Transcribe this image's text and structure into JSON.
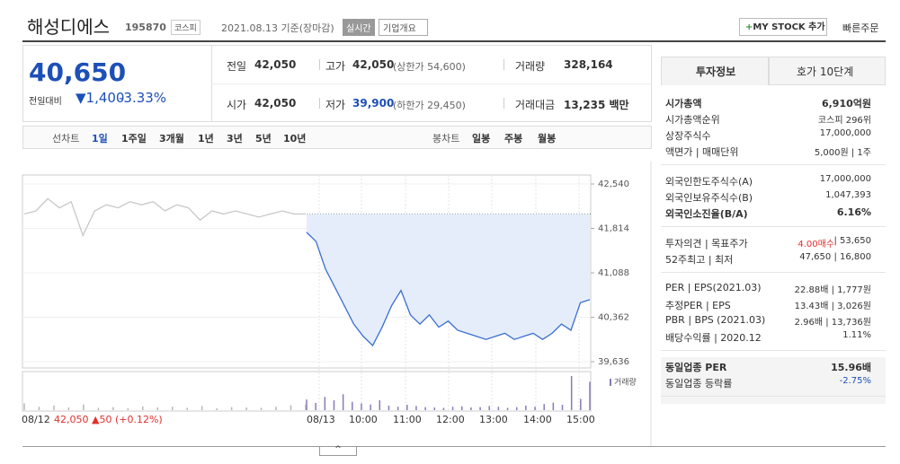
{
  "header": {
    "title": "해성디에스",
    "code": "195870",
    "market": "코스피",
    "date": "2021.08.13 기준(장마감)",
    "realtime": "실시간",
    "overview": "기업개요",
    "mystock": "MY STOCK 추가",
    "quick_order": "빠른주문"
  },
  "quote": {
    "price": "40,650",
    "change_label": "전일대비",
    "change": "▼1,400",
    "change_rate": "-3.33%"
  },
  "table": {
    "rows": [
      [
        {
          "label": "전일",
          "value": "42,050"
        },
        {
          "label": "고가",
          "value": "42,050",
          "note": "(상한가 54,600)"
        },
        {
          "label": "거래량",
          "value": "328,164"
        }
      ],
      [
        {
          "label": "시가",
          "value": "42,050"
        },
        {
          "label": "저가",
          "value": "39,900",
          "note": "(하한가 29,450)"
        },
        {
          "label": "거래대금",
          "value": "13,235 백만"
        }
      ]
    ]
  },
  "tabs": {
    "line_chart": "선차트",
    "periods": [
      "1일",
      "1주일",
      "3개월",
      "1년",
      "3년",
      "5년",
      "10년"
    ],
    "candle_chart": "봉차트",
    "candles": [
      "일봉",
      "주봉",
      "월봉"
    ]
  },
  "chart_data": {
    "type": "line",
    "ylim": [
      39636,
      42540
    ],
    "yticks": [
      {
        "value": 42540,
        "label": "42,540"
      },
      {
        "value": 41814,
        "label": "41,814"
      },
      {
        "value": 41088,
        "label": "41,088"
      },
      {
        "value": 40362,
        "label": "40,362"
      },
      {
        "value": 39636,
        "label": "39,636"
      }
    ],
    "reference": 42050,
    "x_labels": [
      "08/12",
      "08/13",
      "10:00",
      "11:00",
      "12:00",
      "13:00",
      "14:00",
      "15:00"
    ],
    "prev_summary": "42,050 ▲50 (+0.12%)",
    "volume_label": "거래량",
    "series": [
      {
        "name": "08/12",
        "color": "#c8c8c8",
        "values": [
          42050,
          42100,
          42300,
          42150,
          42250,
          41700,
          42100,
          42200,
          42150,
          42250,
          42200,
          42250,
          42100,
          42200,
          42150,
          41950,
          42100,
          42050,
          42100,
          42050,
          42000,
          42050,
          42100,
          42050,
          42050
        ]
      },
      {
        "name": "08/13",
        "color": "#3b6fd0",
        "values": [
          41750,
          41600,
          41150,
          40850,
          40550,
          40250,
          40050,
          39900,
          40200,
          40550,
          40800,
          40400,
          40250,
          40400,
          40200,
          40300,
          40150,
          40100,
          40050,
          40000,
          40050,
          40100,
          40000,
          40050,
          40100,
          40000,
          40100,
          40250,
          40150,
          40600,
          40650
        ]
      }
    ],
    "volume": [
      {
        "color": "#b8b8b8",
        "values": [
          1800,
          900,
          1200,
          700,
          1500,
          600,
          800,
          500,
          1000,
          700,
          900,
          600,
          1100,
          500,
          800,
          700,
          600,
          900,
          1300,
          1500
        ]
      },
      {
        "color": "#8a7ab8",
        "values": [
          2800,
          1900,
          3500,
          2600,
          4200,
          2200,
          1800,
          1500,
          2600,
          1200,
          900,
          1400,
          1100,
          800,
          700,
          600,
          900,
          1000,
          700,
          800,
          1100,
          900,
          600,
          800,
          1200,
          900,
          1600,
          2000,
          1400,
          9000,
          3000,
          7500
        ]
      }
    ]
  },
  "side": {
    "tabs": [
      "투자정보",
      "호가 10단계"
    ],
    "groups": [
      [
        {
          "label": "시가총액",
          "value": "6,910억원"
        },
        {
          "label": "시가총액순위",
          "value": "코스피 296위"
        },
        {
          "label": "상장주식수",
          "value": "17,000,000"
        },
        {
          "label": "액면가 | 매매단위",
          "value": "5,000원 | 1주"
        }
      ],
      [
        {
          "label": "외국인한도주식수(A)",
          "value": "17,000,000"
        },
        {
          "label": "외국인보유주식수(B)",
          "value": "1,047,393"
        },
        {
          "label": "외국인소진율(B/A)",
          "value": "6.16%"
        }
      ],
      [
        {
          "label": "투자의견 | 목표주가",
          "value": "4.00매수",
          "value2": "| 53,650"
        },
        {
          "label": "52주최고 | 최저",
          "value": "47,650 | 16,800"
        }
      ],
      [
        {
          "label": "PER | EPS(2021.03)",
          "value": "22.88배 | 1,777원"
        },
        {
          "label": "추정PER | EPS",
          "value": "13.43배 | 3,026원"
        },
        {
          "label": "PBR | BPS (2021.03)",
          "value": "2.96배 | 13,736원"
        },
        {
          "label": "배당수익률 | 2020.12",
          "value": "1.11%"
        }
      ],
      [
        {
          "label": "동일업종 PER",
          "value": "15.96배"
        },
        {
          "label": "동일업종 등락률",
          "value": "-2.75%"
        }
      ]
    ]
  }
}
